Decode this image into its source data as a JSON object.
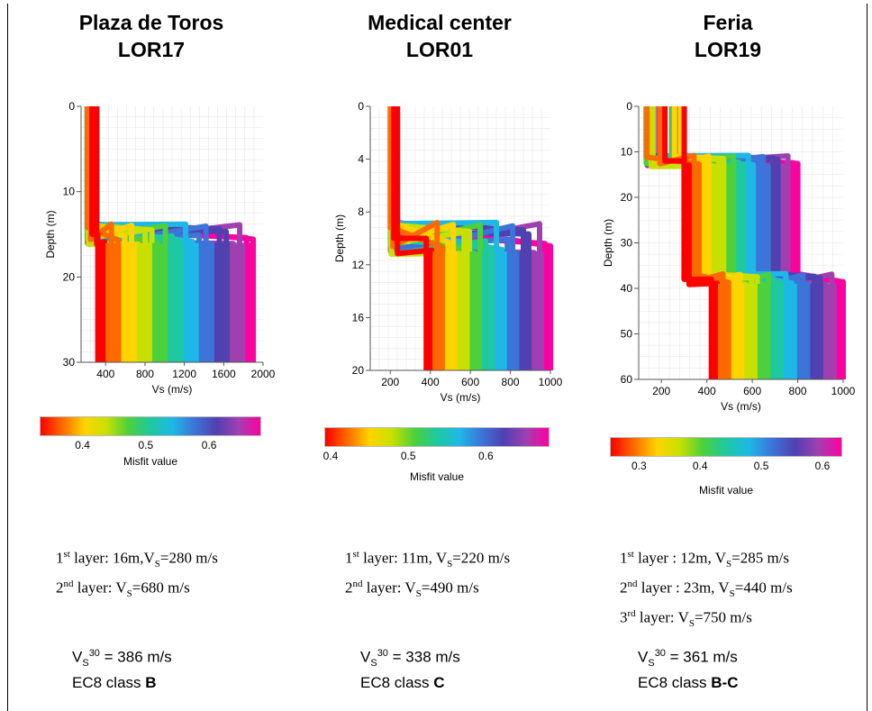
{
  "colorscale": [
    "#ff0000",
    "#ff6a00",
    "#ffd400",
    "#c8e000",
    "#4cd03c",
    "#1ec8a0",
    "#1eb8e6",
    "#3c74d8",
    "#5040b0",
    "#a040b0",
    "#ff00a0"
  ],
  "chart_data": [
    {
      "type": "line",
      "site": "Plaza de Toros",
      "code": "LOR17",
      "xlabel": "Vs (m/s)",
      "ylabel": "Depth (m)",
      "xlim": [
        150,
        2000
      ],
      "ylim": [
        30,
        0
      ],
      "xticks": [
        400,
        800,
        1200,
        1600,
        2000
      ],
      "yticks": [
        0,
        10,
        20,
        30
      ],
      "colorbar": {
        "label": "Misfit value",
        "range": [
          0.33,
          0.68
        ],
        "ticks": [
          0.4,
          0.5,
          0.6
        ]
      },
      "profile": {
        "layer_depths": [
          0,
          15
        ],
        "vmin": [
          210,
          320
        ],
        "vmax": [
          320,
          1900
        ]
      },
      "summary": {
        "layer1": {
          "ordinal": "1",
          "suffix": "st",
          "text": " layer: 16m,V",
          "sub": "S",
          "value": "=280 m/s"
        },
        "layer2": {
          "ordinal": "2",
          "suffix": "nd",
          "text": " layer: V",
          "sub": "S",
          "value": "=680 m/s"
        },
        "vs30_prefix": "V",
        "vs30_sub": "S",
        "vs30_sup": "30",
        "vs30_value": " = 386 m/s",
        "ec8_prefix": "EC8 class ",
        "ec8_class": "B"
      }
    },
    {
      "type": "line",
      "site": "Medical center",
      "code": "LOR01",
      "xlabel": "Vs (m/s)",
      "ylabel": "Depth (m)",
      "xlim": [
        100,
        1000
      ],
      "ylim": [
        20,
        0
      ],
      "xticks": [
        200,
        400,
        600,
        800,
        1000
      ],
      "yticks": [
        0,
        4,
        8,
        12,
        16,
        20
      ],
      "colorbar": {
        "label": "Misfit value",
        "range": [
          0.39,
          0.68
        ],
        "ticks": [
          0.4,
          0.5,
          0.6
        ]
      },
      "profile": {
        "layer_depths": [
          0,
          10
        ],
        "vmin": [
          200,
          380
        ],
        "vmax": [
          240,
          1000
        ]
      },
      "summary": {
        "layer1": {
          "ordinal": "1",
          "suffix": "st",
          "text": " layer: 11m, V",
          "sub": "S",
          "value": "=220 m/s"
        },
        "layer2": {
          "ordinal": "2",
          "suffix": "nd",
          "text": " layer: V",
          "sub": "S",
          "value": "=490 m/s"
        },
        "vs30_prefix": "V",
        "vs30_sub": "S",
        "vs30_sup": "30",
        "vs30_value": " = 338 m/s",
        "ec8_prefix": "EC8 class ",
        "ec8_class": "C"
      }
    },
    {
      "type": "line",
      "site": "Feria",
      "code": "LOR19",
      "xlabel": "Vs (m/s)",
      "ylabel": "Depth (m)",
      "xlim": [
        100,
        1000
      ],
      "ylim": [
        60,
        0
      ],
      "xticks": [
        200,
        400,
        600,
        800,
        1000
      ],
      "yticks": [
        0,
        10,
        20,
        30,
        40,
        50,
        60
      ],
      "colorbar": {
        "label": "Misfit value",
        "range": [
          0.25,
          0.63
        ],
        "ticks": [
          0.3,
          0.4,
          0.5,
          0.6
        ]
      },
      "profile": {
        "layer_depths": [
          0,
          12,
          38
        ],
        "vmin": [
          130,
          300,
          420
        ],
        "vmax": [
          320,
          800,
          1000
        ]
      },
      "summary": {
        "layer1": {
          "ordinal": "1",
          "suffix": "st",
          "text": " layer : 12m, V",
          "sub": "S",
          "value": "=285 m/s"
        },
        "layer2": {
          "ordinal": "2",
          "suffix": "nd",
          "text": " layer : 23m, V",
          "sub": "S",
          "value": "=440 m/s"
        },
        "layer3": {
          "ordinal": "3",
          "suffix": "rd",
          "text": " layer: V",
          "sub": "S",
          "value": "=750 m/s"
        },
        "vs30_prefix": "V",
        "vs30_sub": "S",
        "vs30_sup": "30",
        "vs30_value": " = 361 m/s",
        "ec8_prefix": "EC8 class ",
        "ec8_class": "B-C"
      }
    }
  ]
}
